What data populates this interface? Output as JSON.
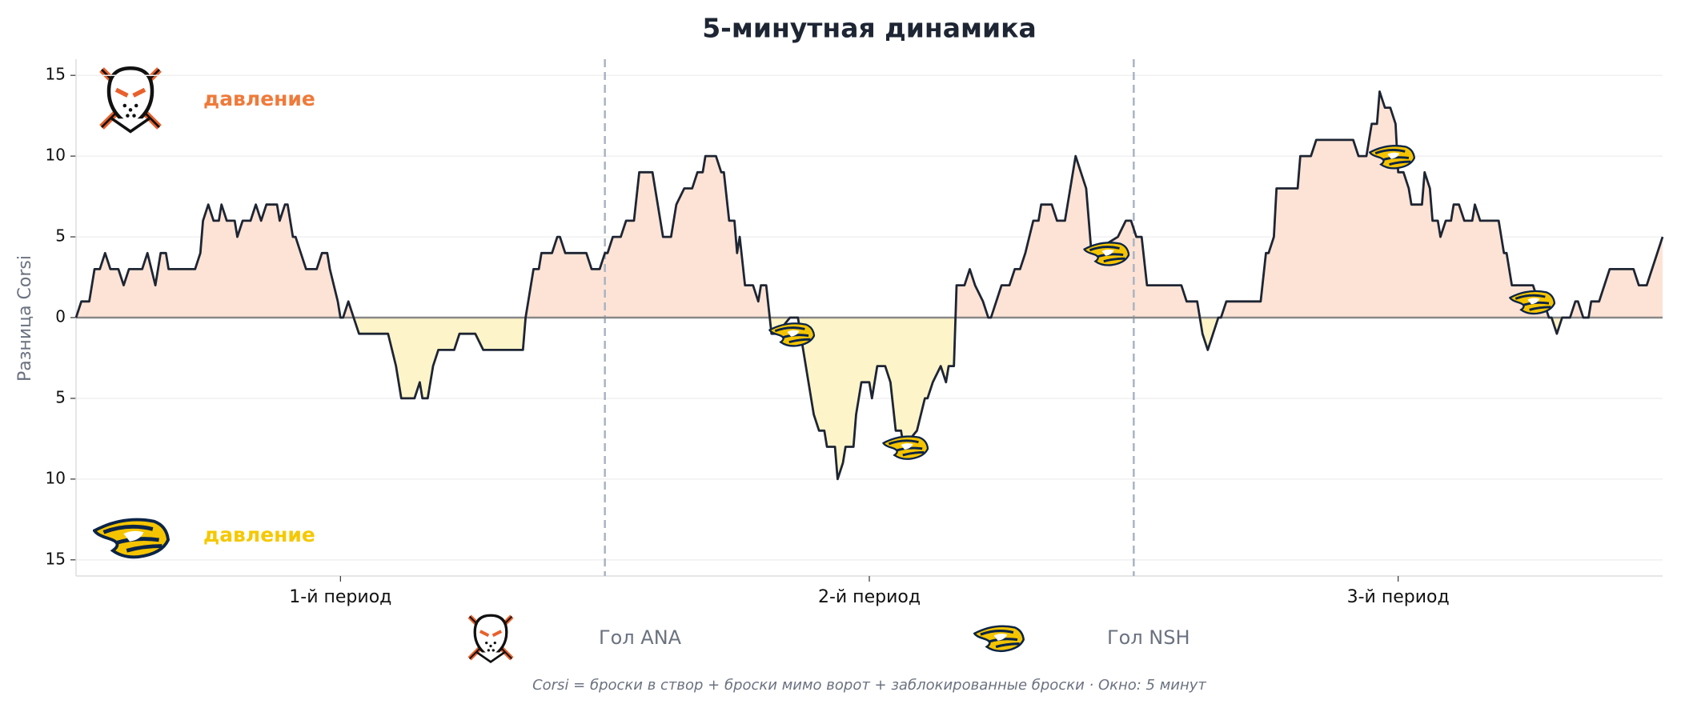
{
  "chart_data": {
    "type": "line",
    "title": "5-минутная динамика",
    "ylabel": "Разница Corsi",
    "footnote": "Corsi = броски в створ + броски мимо ворот + заблокированные броски · Окно: 5 минут",
    "annotations": [
      {
        "text": "давление",
        "color": "#ef7a3a"
      },
      {
        "text": "давление",
        "color": "#f5c800"
      }
    ],
    "line_color": "#1e2533",
    "fill_positive": "#fde3d5",
    "fill_negative": "#fdf5c9",
    "grid": true,
    "xlim": [
      0,
      60
    ],
    "ylim": [
      -16,
      16
    ],
    "yticks": [
      {
        "value": -15,
        "label": "15"
      },
      {
        "value": -10,
        "label": "10"
      },
      {
        "value": -5,
        "label": "5"
      },
      0,
      5,
      10,
      15
    ],
    "xticks": [
      {
        "value": 10,
        "label": "1-й период"
      },
      {
        "value": 30,
        "label": "2-й период"
      },
      {
        "value": 50,
        "label": "3-й период"
      }
    ],
    "period_lines": [
      20,
      40
    ],
    "x": [
      0.0,
      0.2,
      0.5,
      0.7,
      0.9,
      1.1,
      1.3,
      1.6,
      1.8,
      2.0,
      2.5,
      2.7,
      3.0,
      3.2,
      3.4,
      3.5,
      4.5,
      4.7,
      4.8,
      5.0,
      5.2,
      5.4,
      5.5,
      5.7,
      6.0,
      6.1,
      6.3,
      6.6,
      6.8,
      7.0,
      7.2,
      7.6,
      7.7,
      7.9,
      8.0,
      8.2,
      8.3,
      8.5,
      8.7,
      9.1,
      9.3,
      9.5,
      9.6,
      9.9,
      10.0,
      10.1,
      10.3,
      10.5,
      10.7,
      11.8,
      12.1,
      12.3,
      12.8,
      13.0,
      13.1,
      13.3,
      13.5,
      13.7,
      14.3,
      14.5,
      15.1,
      15.4,
      16.9,
      17.0,
      17.1,
      17.3,
      17.5,
      17.6,
      18.0,
      18.2,
      18.3,
      18.5,
      19.3,
      19.5,
      19.8,
      20.0,
      20.1,
      20.3,
      20.6,
      20.8,
      21.1,
      21.3,
      21.8,
      22.0,
      22.2,
      22.5,
      22.7,
      23.0,
      23.3,
      23.5,
      23.7,
      23.8,
      24.2,
      24.4,
      24.5,
      24.7,
      24.9,
      25.0,
      25.1,
      25.3,
      25.6,
      25.8,
      25.9,
      26.1,
      26.3,
      26.5,
      27.0,
      27.3,
      27.4,
      27.5,
      27.7,
      27.9,
      28.1,
      28.3,
      28.4,
      28.7,
      28.8,
      29.0,
      29.1,
      29.4,
      29.5,
      29.7,
      30.0,
      30.1,
      30.3,
      30.6,
      30.8,
      31.0,
      31.2,
      31.3,
      31.8,
      32.1,
      32.2,
      32.4,
      32.7,
      32.9,
      33.0,
      33.2,
      33.3,
      33.6,
      33.8,
      34.0,
      34.3,
      34.5,
      34.6,
      34.8,
      35.0,
      35.3,
      35.5,
      35.7,
      35.9,
      36.2,
      36.4,
      36.5,
      36.9,
      37.1,
      37.4,
      37.8,
      38.0,
      38.2,
      38.4,
      39.4,
      39.7,
      39.9,
      40.1,
      40.3,
      40.5,
      41.8,
      42.0,
      42.4,
      42.6,
      42.8,
      43.0,
      43.2,
      43.3,
      43.5,
      44.8,
      45.0,
      45.1,
      45.3,
      45.4,
      46.2,
      46.3,
      46.7,
      46.9,
      48.3,
      48.5,
      48.8,
      49.0,
      49.2,
      49.3,
      49.5,
      49.7,
      49.9,
      50.0,
      50.2,
      50.4,
      50.5,
      50.9,
      51.0,
      51.2,
      51.3,
      51.5,
      51.6,
      51.8,
      52.0,
      52.1,
      52.3,
      52.5,
      52.8,
      52.9,
      53.1,
      53.8,
      54.0,
      54.1,
      54.3,
      55.1,
      55.3,
      55.5,
      55.7,
      55.8,
      56.0,
      56.2,
      56.5,
      56.7,
      56.8,
      57.0,
      57.2,
      57.3,
      57.6,
      57.8,
      58.0,
      58.9,
      59.1,
      59.4,
      60.0
    ],
    "values": [
      0,
      1,
      1,
      3,
      3,
      4,
      3,
      3,
      2,
      3,
      3,
      4,
      2,
      4,
      4,
      3,
      3,
      4,
      6,
      7,
      6,
      6,
      7,
      6,
      6,
      5,
      6,
      6,
      7,
      6,
      7,
      7,
      6,
      7,
      7,
      5,
      5,
      4,
      3,
      3,
      4,
      4,
      3,
      1,
      0,
      0,
      1,
      0,
      -1,
      -1,
      -3,
      -5,
      -5,
      -4,
      -5,
      -5,
      -3,
      -2,
      -2,
      -1,
      -1,
      -2,
      -2,
      0,
      1,
      3,
      3,
      4,
      4,
      5,
      5,
      4,
      4,
      3,
      3,
      4,
      4,
      5,
      5,
      6,
      6,
      9,
      9,
      7,
      5,
      5,
      7,
      8,
      8,
      9,
      9,
      10,
      10,
      9,
      9,
      6,
      6,
      4,
      5,
      2,
      2,
      1,
      2,
      2,
      -1,
      -1,
      0,
      0,
      -1,
      -2,
      -4,
      -6,
      -7,
      -7,
      -8,
      -8,
      -10,
      -9,
      -8,
      -8,
      -6,
      -4,
      -4,
      -5,
      -3,
      -3,
      -4,
      -7,
      -7,
      -8,
      -7,
      -5,
      -5,
      -4,
      -3,
      -4,
      -3,
      -3,
      2,
      2,
      3,
      2,
      1,
      0,
      0,
      1,
      2,
      2,
      3,
      3,
      4,
      6,
      6,
      7,
      7,
      6,
      6,
      10,
      9,
      8,
      4,
      5,
      6,
      6,
      5,
      5,
      2,
      2,
      1,
      1,
      -1,
      -2,
      -1,
      0,
      0,
      1,
      1,
      4,
      4,
      5,
      8,
      8,
      10,
      10,
      11,
      11,
      10,
      10,
      12,
      12,
      14,
      13,
      13,
      12,
      9,
      9,
      8,
      7,
      7,
      9,
      8,
      6,
      6,
      5,
      6,
      6,
      7,
      7,
      6,
      6,
      7,
      6,
      6,
      4,
      4,
      2,
      2,
      1,
      1,
      0,
      0,
      -1,
      0,
      0,
      1,
      1,
      0,
      0,
      1,
      1,
      2,
      3,
      3,
      2,
      2,
      5
    ],
    "goals": [
      {
        "name": "Гол ANA",
        "x": [],
        "values": []
      },
      {
        "name": "Гол NSH",
        "x": [
          27.1,
          31.4,
          39.0,
          49.8,
          55.1
        ],
        "values": [
          -1,
          -8,
          4,
          10,
          1
        ]
      }
    ]
  }
}
